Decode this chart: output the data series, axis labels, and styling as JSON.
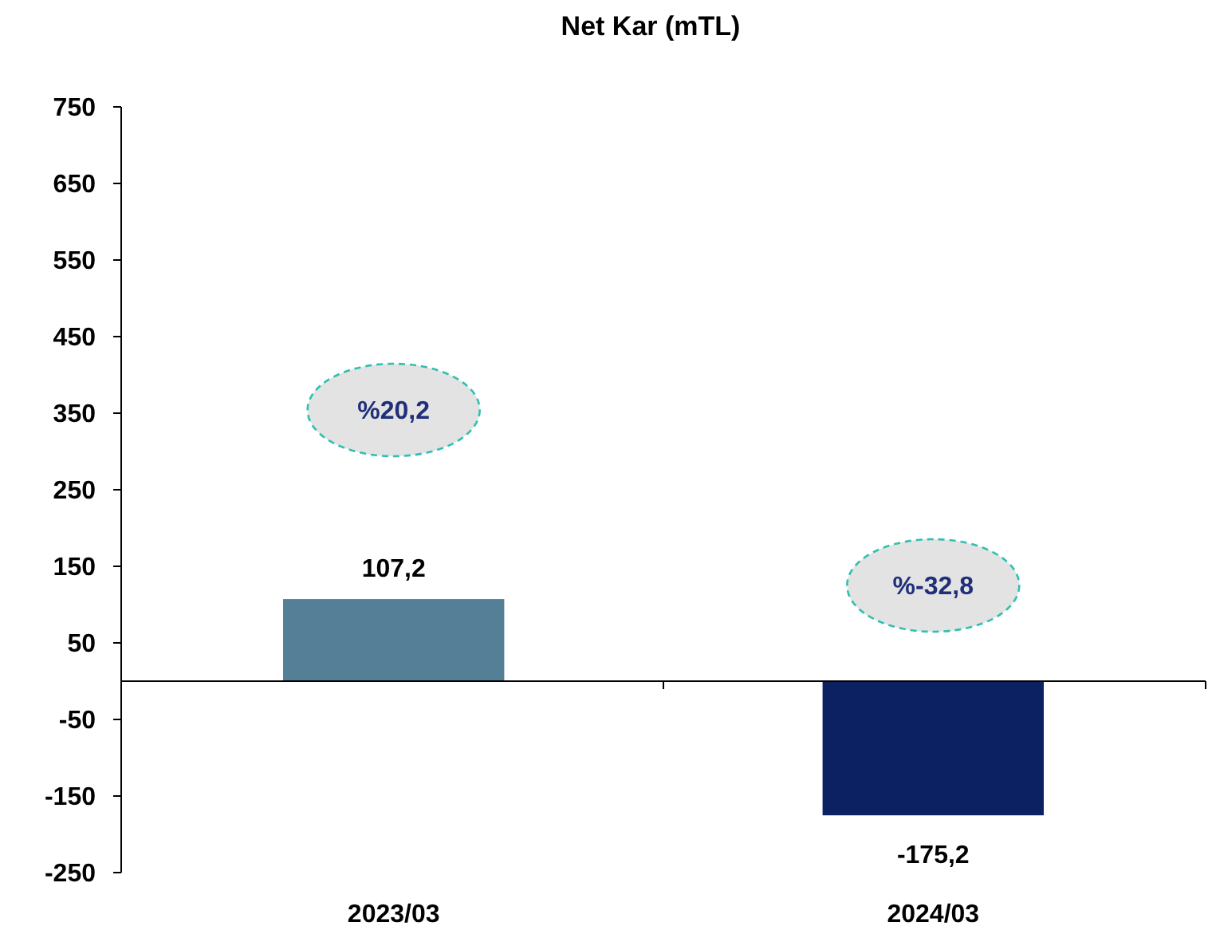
{
  "chart_data": {
    "type": "bar",
    "title": "Net Kar (mTL)",
    "categories": [
      "2023/03",
      "2024/03"
    ],
    "values": [
      107.2,
      -175.2
    ],
    "colors": [
      "#557f96",
      "#0b2161"
    ],
    "value_labels": [
      "107,2",
      "-175,2"
    ],
    "ylim": [
      -250,
      750
    ],
    "yticks": [
      750,
      650,
      550,
      450,
      350,
      250,
      150,
      50,
      -50,
      -150,
      -250
    ],
    "annotations": [
      "%20,2",
      "%-32,8"
    ],
    "grid": false
  }
}
